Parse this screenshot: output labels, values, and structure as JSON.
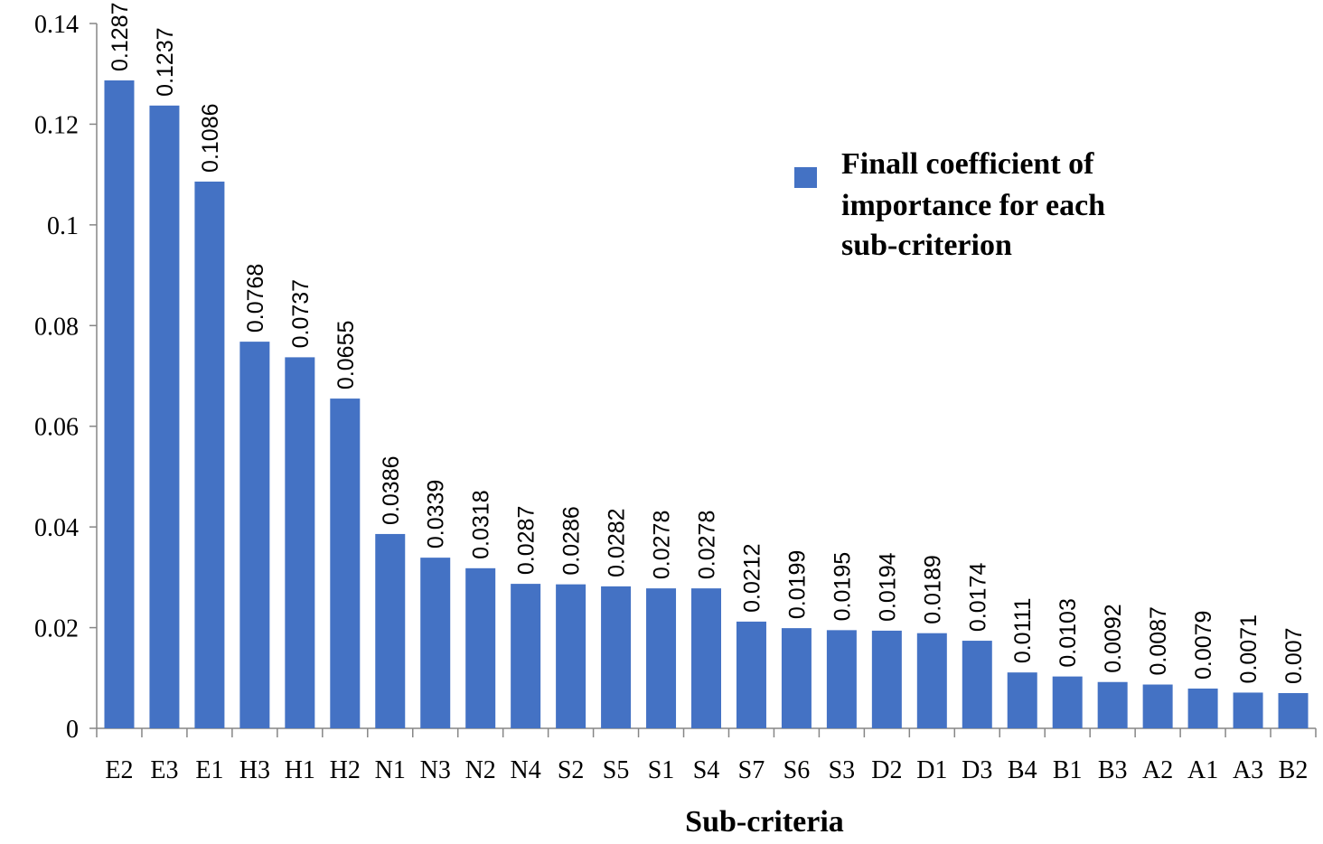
{
  "chart_data": {
    "type": "bar",
    "categories": [
      "E2",
      "E3",
      "E1",
      "H3",
      "H1",
      "H2",
      "N1",
      "N3",
      "N2",
      "N4",
      "S2",
      "S5",
      "S1",
      "S4",
      "S7",
      "S6",
      "S3",
      "D2",
      "D1",
      "D3",
      "B4",
      "B1",
      "B3",
      "A2",
      "A1",
      "A3",
      "B2"
    ],
    "series": [
      {
        "name": "Finall coefficient of importance for each sub-criterion",
        "values": [
          0.1287,
          0.1237,
          0.1086,
          0.0768,
          0.0737,
          0.0655,
          0.0386,
          0.0339,
          0.0318,
          0.0287,
          0.0286,
          0.0282,
          0.0278,
          0.0278,
          0.0212,
          0.0199,
          0.0195,
          0.0194,
          0.0189,
          0.0174,
          0.0111,
          0.0103,
          0.0092,
          0.0087,
          0.0079,
          0.0071,
          0.007
        ],
        "data_labels": [
          "0.1287",
          "0.1237",
          "0.1086",
          "0.0768",
          "0.0737",
          "0.0655",
          "0.0386",
          "0.0339",
          "0.0318",
          "0.0287",
          "0.0286",
          "0.0282",
          "0.0278",
          "0.0278",
          "0.0212",
          "0.0199",
          "0.0195",
          "0.0194",
          "0.0189",
          "0.0174",
          "0.0111",
          "0.0103",
          "0.0092",
          "0.0087",
          "0.0079",
          "0.0071",
          "0.007"
        ]
      }
    ],
    "xlabel": "Sub-criteria",
    "ylabel": "",
    "ylim": [
      0,
      0.14
    ],
    "yticks": [
      "0",
      "0.02",
      "0.04",
      "0.06",
      "0.08",
      "0.1",
      "0.12",
      "0.14"
    ],
    "legend_lines": [
      "Finall coefficient of",
      "importance for each",
      "sub-criterion"
    ],
    "legend_position": "top-right",
    "grid": false,
    "colors": {
      "bar": "#4472C4",
      "axis": "#868686"
    }
  }
}
